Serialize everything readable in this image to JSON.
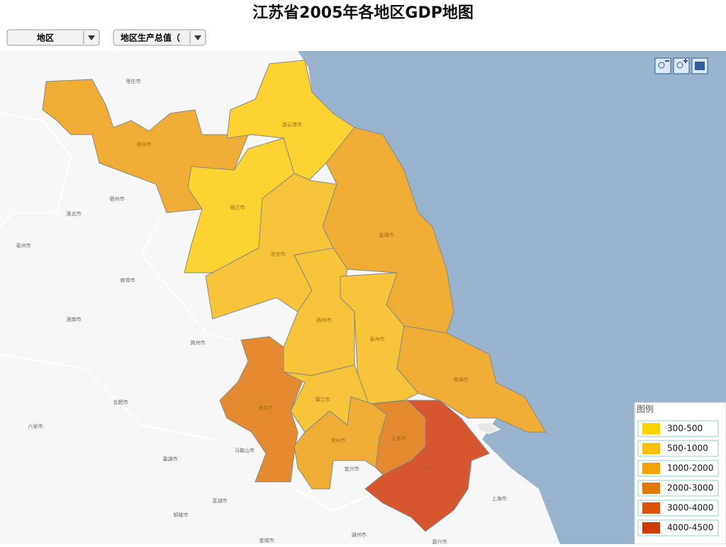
{
  "header": {
    "title": "江苏省2005年各地区GDP地图"
  },
  "controls": [
    {
      "label": "地区"
    },
    {
      "label": "地区生产总值（"
    }
  ],
  "map": {
    "regions": [
      {
        "name": "徐州市",
        "color": "#f0ad36"
      },
      {
        "name": "连云港市",
        "color": "#fcd331"
      },
      {
        "name": "宿迁市",
        "color": "#fcd331"
      },
      {
        "name": "淮安市",
        "color": "#f8c53a"
      },
      {
        "name": "盐城市",
        "color": "#f0ad36"
      },
      {
        "name": "扬州市",
        "color": "#f8c53a"
      },
      {
        "name": "泰州市",
        "color": "#f8c53a"
      },
      {
        "name": "南通市",
        "color": "#f0ad36"
      },
      {
        "name": "南京市",
        "color": "#e48b31"
      },
      {
        "name": "镇江市",
        "color": "#f8c53a"
      },
      {
        "name": "常州市",
        "color": "#f0ad36"
      },
      {
        "name": "无锡市",
        "color": "#e48b31"
      },
      {
        "name": "苏州市",
        "color": "#d6562f"
      }
    ],
    "other_labels": [
      "枣庄市",
      "宿州市",
      "淮北市",
      "亳州市",
      "蚌埠市",
      "淮南市",
      "滁州市",
      "合肥市",
      "六安市",
      "马鞍山市",
      "巢湖市",
      "芜湖市",
      "铜陵市",
      "宣城市",
      "宜兴市",
      "湖州市",
      "嘉兴市",
      "上海市"
    ]
  },
  "legend": {
    "title": "图例",
    "items": [
      {
        "label": "300-500",
        "color": "#ffd200"
      },
      {
        "label": "500-1000",
        "color": "#fcc00a"
      },
      {
        "label": "1000-2000",
        "color": "#f5a30a"
      },
      {
        "label": "2000-3000",
        "color": "#e07a0a"
      },
      {
        "label": "3000-4000",
        "color": "#d9540a"
      },
      {
        "label": "4000-4500",
        "color": "#cc3a0a"
      }
    ]
  }
}
